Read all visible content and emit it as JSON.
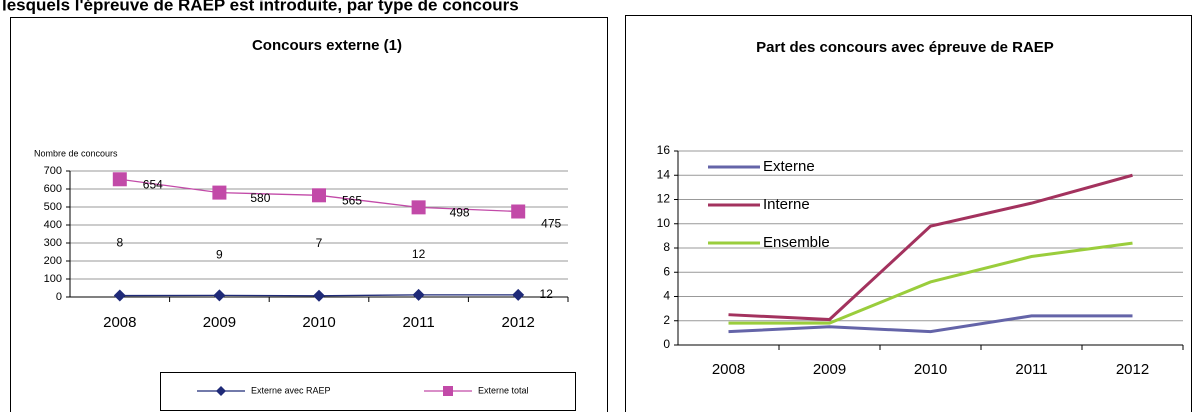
{
  "header": {
    "title": "lesquels l'épreuve de RAEP est introduite, par type de concours"
  },
  "chart_data": [
    {
      "type": "line",
      "title": "Concours externe (1)",
      "ylabel": "Nombre de concours",
      "categories": [
        "2008",
        "2009",
        "2010",
        "2011",
        "2012"
      ],
      "series": [
        {
          "name": "Externe avec RAEP",
          "color": "#1f2a78",
          "marker": "diamond",
          "values": [
            8,
            9,
            7,
            12,
            12
          ]
        },
        {
          "name": "Externe total",
          "color": "#c24aa8",
          "marker": "square",
          "values": [
            654,
            580,
            565,
            498,
            475
          ]
        }
      ],
      "ylim": [
        0,
        700
      ],
      "yticks": [
        0,
        100,
        200,
        300,
        400,
        500,
        600,
        700
      ],
      "grid": true,
      "legend": "bottom",
      "data_labels": true
    },
    {
      "type": "line",
      "title": "Part des concours avec épreuve de RAEP",
      "categories": [
        "2008",
        "2009",
        "2010",
        "2011",
        "2012"
      ],
      "series": [
        {
          "name": "Externe",
          "color": "#6464a8",
          "values": [
            1.1,
            1.5,
            1.1,
            2.4,
            2.4
          ]
        },
        {
          "name": "Interne",
          "color": "#a3325e",
          "values": [
            2.5,
            2.1,
            9.8,
            11.7,
            14
          ]
        },
        {
          "name": "Ensemble",
          "color": "#9acd3c",
          "values": [
            1.8,
            1.8,
            5.2,
            7.3,
            8.4
          ]
        }
      ],
      "ylim": [
        0,
        16
      ],
      "yticks": [
        0,
        2,
        4,
        6,
        8,
        10,
        12,
        14,
        16
      ],
      "grid": true,
      "legend": "upper left",
      "data_labels": false
    }
  ]
}
